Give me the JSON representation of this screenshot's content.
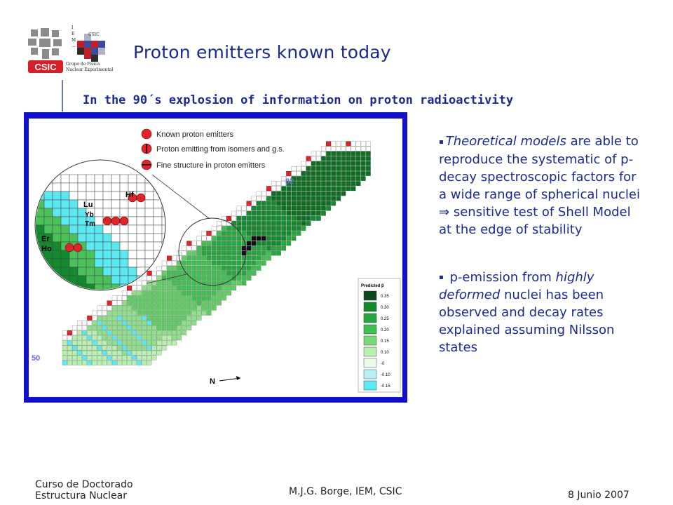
{
  "header": {
    "csic_logo_text": "CSIC",
    "iem_letters": [
      "I",
      "E",
      "M",
      "..."
    ],
    "iem_csic_text": "CSIC",
    "group_line1": "Grupo de Física",
    "group_line2": "Nuclear Experimental"
  },
  "title": "Proton emitters known today",
  "subtitle": "In the 90´s explosion of information  on proton radioactivity",
  "figure": {
    "legend": [
      {
        "label": "Known proton emitters",
        "marker": "filled-circle"
      },
      {
        "label": "Proton emitting from isomers and g.s.",
        "marker": "circle-vertical-bar"
      },
      {
        "label": "Fine structure in proton emitters",
        "marker": "circle-horizontal-bar"
      }
    ],
    "magic_82": "82",
    "magic_50": "50",
    "axis_label": "N",
    "deformation_title": "Predicted β",
    "deformation_values": [
      "0.35",
      "0.30",
      "0.25",
      "0.20",
      "0.15",
      "0.10",
      "-0",
      "-0.10",
      "-0.15"
    ],
    "zoom_elements": [
      "Hf",
      "Lu",
      "Yb",
      "Tm",
      "Er",
      "Ho"
    ],
    "colors": {
      "frame": "#1010c8",
      "emitter_red": "#e0252a",
      "cyan": "#5ce8f0",
      "green_light": "#9ee59a",
      "green_mid": "#3fbf4f",
      "green_dark": "#138a2e"
    }
  },
  "bullets": [
    {
      "marker": "▪",
      "italic": "Theoretical models",
      "text": " are able to reproduce the systematic of p-decay spectroscopic factors for a wide range of spherical nuclei ",
      "arrow": "⇒",
      "text2": " sensitive test of Shell Model at the edge of stability"
    },
    {
      "marker": "▪",
      "pre": " p-emission from ",
      "italic": "highly deformed",
      "text": " nuclei has been observed and decay rates explained assuming Nilsson states"
    }
  ],
  "footer": {
    "course_line1": "Curso de Doctorado",
    "course_line2": "Estructura Nuclear",
    "author": "M.J.G. Borge, IEM, CSIC",
    "date": "8 Junio 2007"
  }
}
